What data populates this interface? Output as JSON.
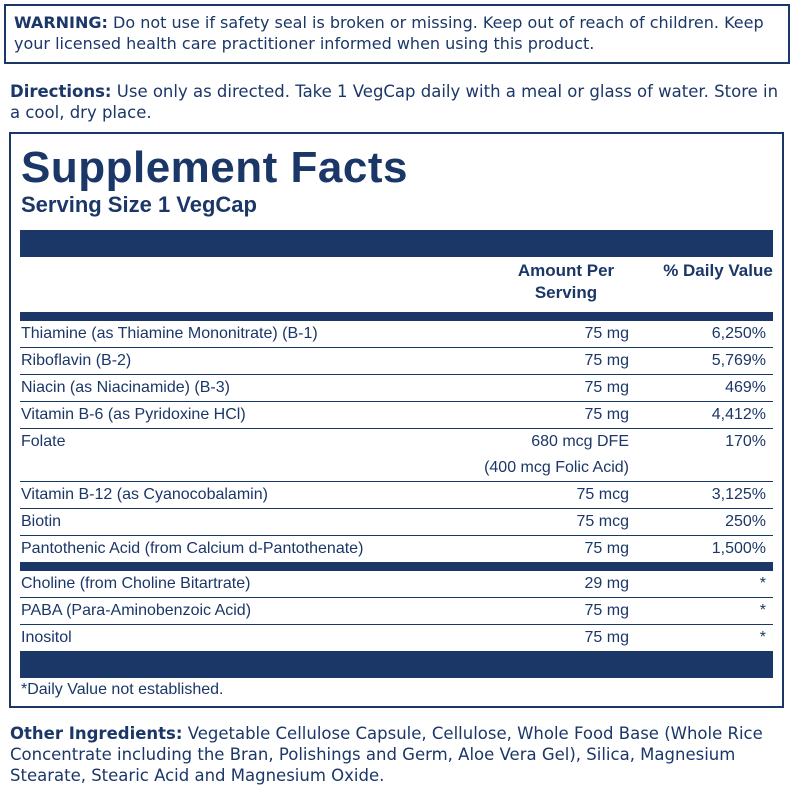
{
  "warning": {
    "label": "WARNING:",
    "text": "Do not use if safety seal is broken or missing. Keep out of reach of children. Keep your licensed health care practitioner informed when using this product."
  },
  "directions": {
    "label": "Directions:",
    "text": "Use only as directed. Take 1 VegCap daily with a meal or glass of water. Store in a cool, dry place."
  },
  "facts": {
    "title": "Supplement Facts",
    "serving_size": "Serving Size 1 VegCap",
    "header": {
      "amount": "Amount Per Serving",
      "daily_value": "% Daily Value"
    },
    "sections": [
      [
        {
          "name": "Thiamine (as Thiamine Mononitrate) (B-1)",
          "amount": "75 mg",
          "daily_value": "6,250%"
        },
        {
          "name": "Riboflavin (B-2)",
          "amount": "75 mg",
          "daily_value": "5,769%"
        },
        {
          "name": "Niacin (as Niacinamide) (B-3)",
          "amount": "75 mg",
          "daily_value": "469%"
        },
        {
          "name": "Vitamin B-6 (as Pyridoxine HCl)",
          "amount": "75 mg",
          "daily_value": "4,412%"
        },
        {
          "name": "Folate",
          "amount": "680 mcg DFE",
          "amount_detail": "(400 mcg Folic Acid)",
          "daily_value": "170%"
        },
        {
          "name": "Vitamin B-12 (as Cyanocobalamin)",
          "amount": "75 mcg",
          "daily_value": "3,125%"
        },
        {
          "name": "Biotin",
          "amount": "75 mcg",
          "daily_value": "250%"
        },
        {
          "name": "Pantothenic Acid (from Calcium d-Pantothenate)",
          "amount": "75 mg",
          "daily_value": "1,500%"
        }
      ],
      [
        {
          "name": "Choline (from Choline Bitartrate)",
          "amount": "29 mg",
          "daily_value": "*"
        },
        {
          "name": "PABA (Para-Aminobenzoic Acid)",
          "amount": "75 mg",
          "daily_value": "*"
        },
        {
          "name": "Inositol",
          "amount": "75 mg",
          "daily_value": "*"
        }
      ]
    ],
    "footnote": "*Daily Value not established."
  },
  "other_ingredients": {
    "label": "Other Ingredients:",
    "text": "Vegetable Cellulose Capsule, Cellulose, Whole Food Base (Whole Rice Concentrate including the Bran, Polishings and Germ, Aloe Vera Gel), Silica, Magnesium Stearate, Stearic Acid and Magnesium Oxide."
  }
}
